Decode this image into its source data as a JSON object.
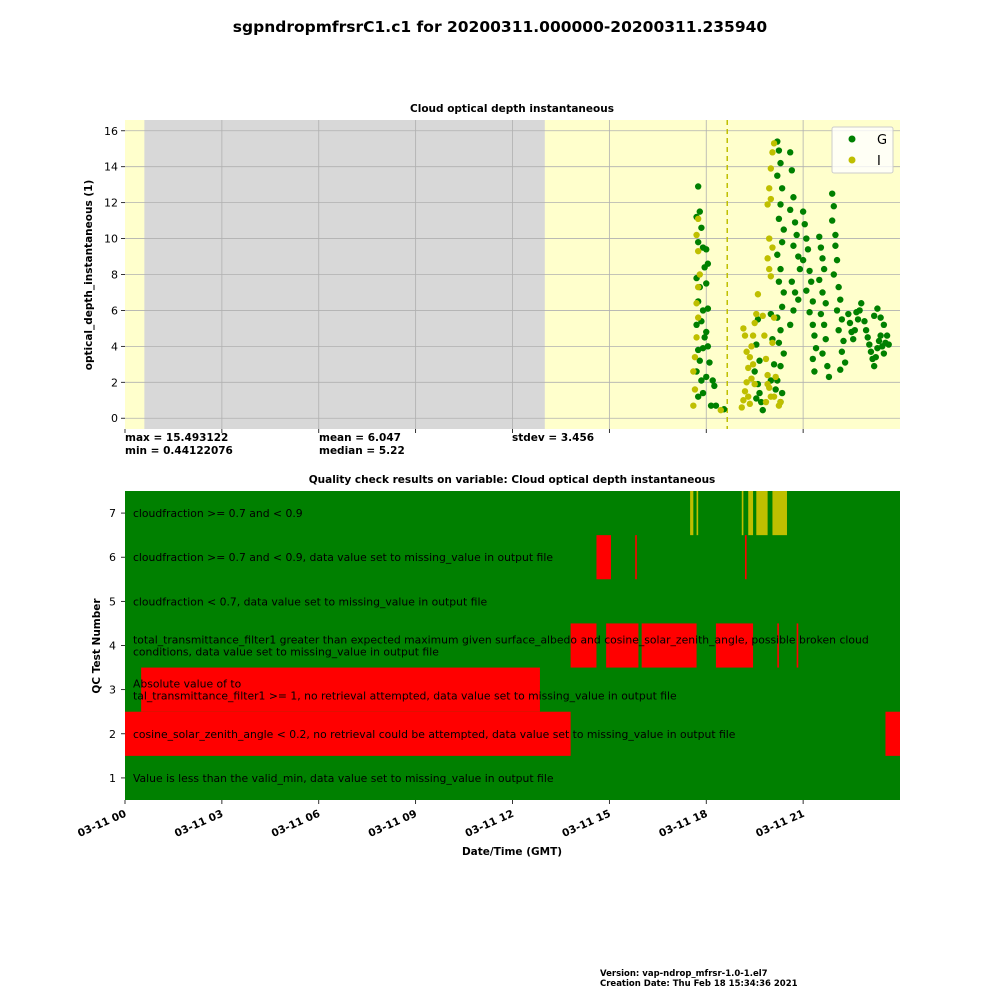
{
  "figure": {
    "title": "sgpndropmfrsrC1.c1 for 20200311.000000-20200311.235940",
    "footer_version": "Version: vap-ndrop_mfrsr-1.0-1.el7",
    "footer_created": "Creation Date: Thu Feb 18 15:34:36 2021"
  },
  "chart_data": [
    {
      "type": "scatter",
      "title": "Cloud optical depth instantaneous",
      "xlabel": "",
      "ylabel": "optical_depth_instantaneous (1)",
      "x_unit": "hours since 2020-03-11 00:00 GMT",
      "xlim": [
        0,
        24
      ],
      "ylim": [
        -0.6,
        16.6
      ],
      "yticks": [
        0,
        2,
        4,
        6,
        8,
        10,
        12,
        14,
        16
      ],
      "grid": true,
      "legend": {
        "position": "top-right",
        "entries": [
          {
            "label": "G",
            "color": "#008000"
          },
          {
            "label": "I",
            "color": "#bfbf00"
          }
        ]
      },
      "background": {
        "color": "#ffffcc",
        "shaded_ranges": [
          {
            "from": 0.6,
            "to": 13.0,
            "color": "#d8d8d8"
          }
        ]
      },
      "dashed_vline": {
        "x": 18.65,
        "color": "#bfbf00"
      },
      "stats": {
        "max": "max = 15.493122",
        "min": "min = 0.44122076",
        "mean": "mean = 6.047",
        "median": "median = 5.22",
        "stdev": "stdev = 3.456"
      },
      "series": [
        {
          "name": "G",
          "color": "#008000",
          "points": [
            [
              17.75,
              12.9
            ],
            [
              17.8,
              11.5
            ],
            [
              17.85,
              10.6
            ],
            [
              17.9,
              9.5
            ],
            [
              17.95,
              8.4
            ],
            [
              17.8,
              7.3
            ],
            [
              17.9,
              6.0
            ],
            [
              17.85,
              5.4
            ],
            [
              17.95,
              4.5
            ],
            [
              17.9,
              3.9
            ],
            [
              17.8,
              3.2
            ],
            [
              17.85,
              2.1
            ],
            [
              17.9,
              1.4
            ],
            [
              17.7,
              11.2
            ],
            [
              17.75,
              9.8
            ],
            [
              17.7,
              7.8
            ],
            [
              17.75,
              6.5
            ],
            [
              17.7,
              5.2
            ],
            [
              17.75,
              3.8
            ],
            [
              17.7,
              2.6
            ],
            [
              17.75,
              1.2
            ],
            [
              18.0,
              9.4
            ],
            [
              18.05,
              8.6
            ],
            [
              18.0,
              7.5
            ],
            [
              18.05,
              6.1
            ],
            [
              18.0,
              4.8
            ],
            [
              18.05,
              4.0
            ],
            [
              18.1,
              3.1
            ],
            [
              18.0,
              2.3
            ],
            [
              18.2,
              2.1
            ],
            [
              18.25,
              1.8
            ],
            [
              18.3,
              0.7
            ],
            [
              18.15,
              0.7
            ],
            [
              18.55,
              0.5
            ],
            [
              19.6,
              5.5
            ],
            [
              19.55,
              4.1
            ],
            [
              19.65,
              3.2
            ],
            [
              19.5,
              2.6
            ],
            [
              19.6,
              1.9
            ],
            [
              19.55,
              1.1
            ],
            [
              19.7,
              0.9
            ],
            [
              19.75,
              0.45
            ],
            [
              19.65,
              1.4
            ],
            [
              20.2,
              15.4
            ],
            [
              20.25,
              14.9
            ],
            [
              20.3,
              14.2
            ],
            [
              20.2,
              13.5
            ],
            [
              20.35,
              12.8
            ],
            [
              20.3,
              11.9
            ],
            [
              20.25,
              11.1
            ],
            [
              20.4,
              10.5
            ],
            [
              20.35,
              9.8
            ],
            [
              20.2,
              9.1
            ],
            [
              20.3,
              8.3
            ],
            [
              20.25,
              7.6
            ],
            [
              20.4,
              7.0
            ],
            [
              20.35,
              6.2
            ],
            [
              20.2,
              5.6
            ],
            [
              20.3,
              4.9
            ],
            [
              20.25,
              4.2
            ],
            [
              20.4,
              3.6
            ],
            [
              20.3,
              2.9
            ],
            [
              20.2,
              2.1
            ],
            [
              20.35,
              1.4
            ],
            [
              20.3,
              0.9
            ],
            [
              20.0,
              5.8
            ],
            [
              20.05,
              4.4
            ],
            [
              20.1,
              3.0
            ],
            [
              20.0,
              2.1
            ],
            [
              20.15,
              1.6
            ],
            [
              20.6,
              14.8
            ],
            [
              20.65,
              13.8
            ],
            [
              20.7,
              12.3
            ],
            [
              20.6,
              11.6
            ],
            [
              20.75,
              10.9
            ],
            [
              20.8,
              10.2
            ],
            [
              20.7,
              9.6
            ],
            [
              20.85,
              9.0
            ],
            [
              20.9,
              8.3
            ],
            [
              20.65,
              7.6
            ],
            [
              20.75,
              7.0
            ],
            [
              20.85,
              6.6
            ],
            [
              20.7,
              6.0
            ],
            [
              20.6,
              5.2
            ],
            [
              21.0,
              11.5
            ],
            [
              21.05,
              10.8
            ],
            [
              21.1,
              10.0
            ],
            [
              21.15,
              9.4
            ],
            [
              21.0,
              8.8
            ],
            [
              21.2,
              8.2
            ],
            [
              21.25,
              7.6
            ],
            [
              21.1,
              7.1
            ],
            [
              21.3,
              6.5
            ],
            [
              21.2,
              5.9
            ],
            [
              21.3,
              5.2
            ],
            [
              21.35,
              4.6
            ],
            [
              21.4,
              3.9
            ],
            [
              21.3,
              3.3
            ],
            [
              21.35,
              2.6
            ],
            [
              21.5,
              10.1
            ],
            [
              21.55,
              9.5
            ],
            [
              21.6,
              8.9
            ],
            [
              21.65,
              8.3
            ],
            [
              21.5,
              7.7
            ],
            [
              21.6,
              7.0
            ],
            [
              21.7,
              6.4
            ],
            [
              21.55,
              5.8
            ],
            [
              21.65,
              5.2
            ],
            [
              21.7,
              4.4
            ],
            [
              21.6,
              3.6
            ],
            [
              21.75,
              2.9
            ],
            [
              21.8,
              2.3
            ],
            [
              21.9,
              12.5
            ],
            [
              21.95,
              11.8
            ],
            [
              21.9,
              11.0
            ],
            [
              22.0,
              10.2
            ],
            [
              22.0,
              9.6
            ],
            [
              22.05,
              8.8
            ],
            [
              21.95,
              8.0
            ],
            [
              22.1,
              7.3
            ],
            [
              22.15,
              6.6
            ],
            [
              22.05,
              6.0
            ],
            [
              22.2,
              5.5
            ],
            [
              22.1,
              4.9
            ],
            [
              22.25,
              4.3
            ],
            [
              22.2,
              3.7
            ],
            [
              22.3,
              3.1
            ],
            [
              22.15,
              2.7
            ],
            [
              22.4,
              5.8
            ],
            [
              22.45,
              5.3
            ],
            [
              22.5,
              4.8
            ],
            [
              22.55,
              4.4
            ],
            [
              22.6,
              4.9
            ],
            [
              22.7,
              5.5
            ],
            [
              22.75,
              6.0
            ],
            [
              22.8,
              6.4
            ],
            [
              22.65,
              5.9
            ],
            [
              22.9,
              5.4
            ],
            [
              22.95,
              4.9
            ],
            [
              23.0,
              4.5
            ],
            [
              23.05,
              4.1
            ],
            [
              23.1,
              3.7
            ],
            [
              23.15,
              3.3
            ],
            [
              23.2,
              2.9
            ],
            [
              23.25,
              3.4
            ],
            [
              23.3,
              3.9
            ],
            [
              23.35,
              4.3
            ],
            [
              23.4,
              4.6
            ],
            [
              23.45,
              4.0
            ],
            [
              23.5,
              3.6
            ],
            [
              23.55,
              4.2
            ],
            [
              23.6,
              4.6
            ],
            [
              23.65,
              4.1
            ],
            [
              23.5,
              5.2
            ],
            [
              23.4,
              5.6
            ],
            [
              23.3,
              6.1
            ],
            [
              23.2,
              5.7
            ]
          ]
        },
        {
          "name": "I",
          "color": "#bfbf00",
          "points": [
            [
              17.75,
              11.1
            ],
            [
              17.7,
              10.2
            ],
            [
              17.75,
              9.3
            ],
            [
              17.8,
              8.0
            ],
            [
              17.75,
              7.3
            ],
            [
              17.7,
              6.4
            ],
            [
              17.75,
              5.6
            ],
            [
              17.7,
              4.5
            ],
            [
              17.65,
              3.4
            ],
            [
              17.6,
              2.6
            ],
            [
              17.65,
              1.6
            ],
            [
              17.6,
              0.7
            ],
            [
              18.45,
              0.45
            ],
            [
              19.1,
              0.6
            ],
            [
              19.15,
              1.0
            ],
            [
              19.2,
              1.5
            ],
            [
              19.25,
              2.0
            ],
            [
              19.3,
              2.8
            ],
            [
              19.35,
              3.4
            ],
            [
              19.4,
              4.0
            ],
            [
              19.45,
              4.6
            ],
            [
              19.5,
              5.3
            ],
            [
              19.55,
              5.8
            ],
            [
              19.6,
              6.9
            ],
            [
              19.4,
              2.2
            ],
            [
              19.3,
              1.2
            ],
            [
              19.35,
              0.8
            ],
            [
              19.5,
              1.9
            ],
            [
              19.45,
              3.0
            ],
            [
              19.25,
              3.7
            ],
            [
              19.2,
              4.6
            ],
            [
              19.15,
              5.0
            ],
            [
              19.75,
              5.7
            ],
            [
              19.8,
              4.6
            ],
            [
              19.85,
              3.3
            ],
            [
              19.9,
              2.4
            ],
            [
              19.95,
              1.7
            ],
            [
              20.0,
              1.2
            ],
            [
              19.85,
              0.9
            ],
            [
              19.9,
              1.9
            ],
            [
              19.95,
              12.8
            ],
            [
              20.0,
              13.9
            ],
            [
              20.05,
              14.8
            ],
            [
              20.1,
              15.3
            ],
            [
              20.0,
              12.2
            ],
            [
              19.9,
              11.9
            ],
            [
              19.95,
              10.0
            ],
            [
              20.05,
              9.5
            ],
            [
              19.95,
              8.3
            ],
            [
              19.9,
              8.9
            ],
            [
              20.0,
              7.9
            ],
            [
              20.1,
              5.6
            ],
            [
              20.05,
              4.2
            ],
            [
              20.15,
              2.3
            ],
            [
              20.1,
              1.2
            ],
            [
              20.3,
              0.9
            ],
            [
              20.25,
              0.7
            ]
          ]
        }
      ]
    },
    {
      "type": "heatmap",
      "title": "Quality check results on variable: Cloud optical depth instantaneous",
      "xlabel": "Date/Time (GMT)",
      "ylabel": "QC Test Number",
      "xlim": [
        0,
        24
      ],
      "xticks": [
        "03-11 00",
        "03-11 03",
        "03-11 06",
        "03-11 09",
        "03-11 12",
        "03-11 15",
        "03-11 18",
        "03-11 21"
      ],
      "colors": {
        "pass": "#008000",
        "fail": "#ff0000",
        "indeterminate": "#bfbf00"
      },
      "tests": [
        {
          "number": "7",
          "label": "cloudfraction >= 0.7 and < 0.9",
          "state": "indeterminate",
          "ranges": [
            [
              17.5,
              17.6
            ],
            [
              17.7,
              17.75
            ],
            [
              19.1,
              19.15
            ],
            [
              19.3,
              19.45
            ],
            [
              19.55,
              19.9
            ],
            [
              20.05,
              20.5
            ]
          ]
        },
        {
          "number": "6",
          "label": "cloudfraction >= 0.7 and < 0.9, data value set to missing_value in output file",
          "state": "fail",
          "ranges": [
            [
              14.6,
              15.05
            ],
            [
              15.8,
              15.85
            ],
            [
              19.2,
              19.25
            ]
          ]
        },
        {
          "number": "5",
          "label": "cloudfraction < 0.7, data value set to missing_value in output file",
          "state": "fail",
          "ranges": []
        },
        {
          "number": "4",
          "label": "total_transmittance_filter1 greater than expected maximum given surface_albedo and cosine_solar_zenith_angle, possible broken cloud conditions, data value set to missing_value in output file",
          "state": "fail",
          "ranges": [
            [
              13.8,
              14.6
            ],
            [
              14.9,
              15.0
            ],
            [
              15.0,
              15.9
            ],
            [
              16.0,
              17.7
            ],
            [
              18.3,
              19.45
            ],
            [
              20.2,
              20.25
            ],
            [
              20.8,
              20.85
            ]
          ]
        },
        {
          "number": "3",
          "label": "Absolute value of total_transmittance_filter1 >= 1, no retrieval attempted, data value set to missing_value in output file",
          "state": "fail",
          "ranges": [
            [
              0.5,
              12.85
            ]
          ]
        },
        {
          "number": "2",
          "label": "cosine_solar_zenith_angle < 0.2, no retrieval could be attempted, data value set to missing_value in output file",
          "state": "fail",
          "ranges": [
            [
              0,
              13.8
            ],
            [
              23.55,
              24
            ]
          ]
        },
        {
          "number": "1",
          "label": "Value is less than the valid_min, data value set to missing_value in output file",
          "state": "fail",
          "ranges": []
        }
      ]
    }
  ]
}
